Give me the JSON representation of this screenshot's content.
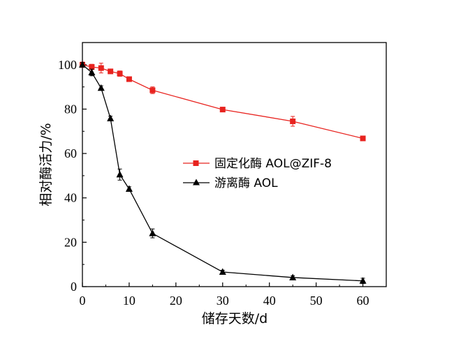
{
  "chart_data": {
    "type": "line",
    "title": "",
    "xlabel": "储存天数/d",
    "ylabel": "相对酶活力/%",
    "xlim": [
      0,
      65
    ],
    "ylim": [
      0,
      110
    ],
    "xticks": [
      0,
      10,
      20,
      30,
      40,
      50,
      60
    ],
    "yticks": [
      0,
      20,
      40,
      60,
      80,
      100
    ],
    "grid": false,
    "legend_position": "center-right",
    "series": [
      {
        "name": "固定化酶 AOL@ZIF-8",
        "color": "#e8231f",
        "marker": "square",
        "x": [
          0,
          2,
          4,
          6,
          8,
          10,
          15,
          30,
          45,
          60
        ],
        "y": [
          100,
          99,
          98.5,
          97,
          96,
          93.5,
          88.5,
          79.8,
          74.5,
          66.8
        ],
        "err": [
          1.2,
          1.2,
          2.2,
          1.0,
          1.2,
          1.0,
          1.5,
          1.0,
          2.2,
          1.0
        ]
      },
      {
        "name": "游离酶  AOL",
        "color": "#000000",
        "marker": "triangle",
        "x": [
          0,
          2,
          4,
          6,
          8,
          10,
          15,
          30,
          45,
          60
        ],
        "y": [
          100,
          96.5,
          89.5,
          75.8,
          50.5,
          44,
          24,
          6.6,
          4.1,
          2.6
        ],
        "err": [
          1.0,
          1.5,
          1.0,
          1.0,
          2.5,
          1.0,
          2.0,
          0.8,
          0.8,
          1.2
        ]
      }
    ]
  }
}
